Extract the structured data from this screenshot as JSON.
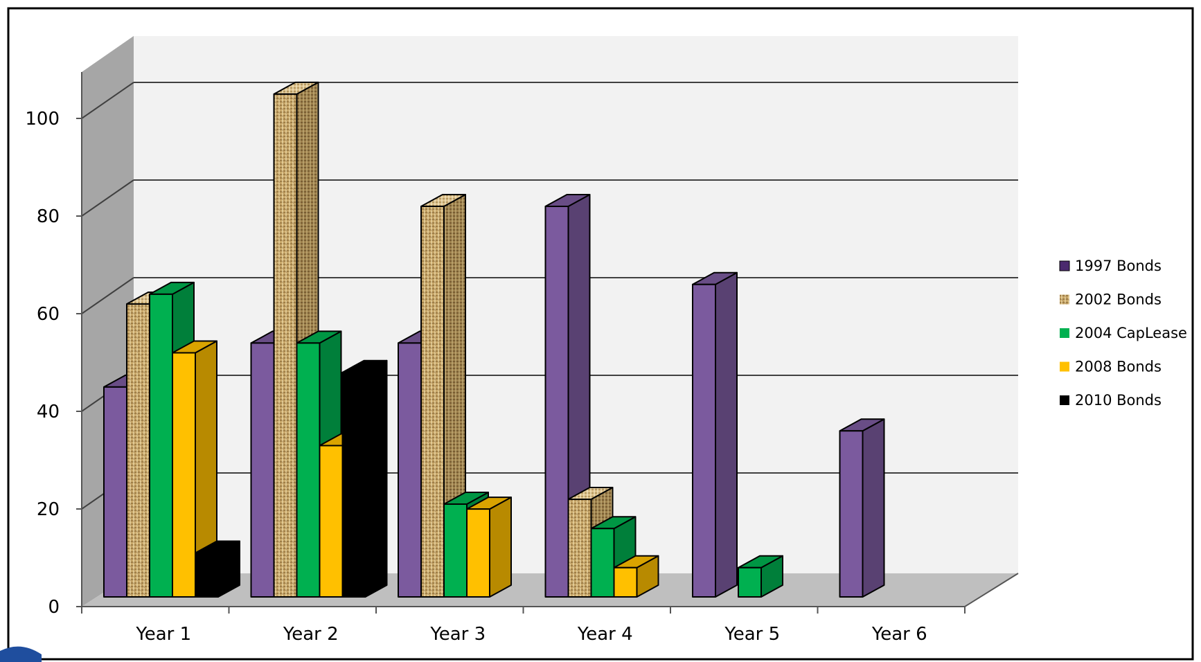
{
  "chart_data": {
    "type": "bar",
    "title": "",
    "xlabel": "",
    "ylabel": "",
    "categories": [
      "Year 1",
      "Year 2",
      "Year 3",
      "Year 4",
      "Year 5",
      "Year 6"
    ],
    "ylim": [
      0,
      100
    ],
    "yticks": [
      "0",
      "20",
      "40",
      "60",
      "80",
      "100"
    ],
    "grid": true,
    "three_d": true,
    "legend_position": "right",
    "series": [
      {
        "name": "1997 Bonds",
        "color": "#7b5a9e",
        "values": [
          43,
          52,
          52,
          80,
          64,
          34
        ]
      },
      {
        "name": "2002 Bonds",
        "color": "#c9a86a",
        "pattern": "burlap",
        "values": [
          60,
          103,
          80,
          20,
          0,
          0
        ]
      },
      {
        "name": "2004 CapLease",
        "color": "#00b050",
        "values": [
          62,
          52,
          19,
          14,
          6,
          0
        ]
      },
      {
        "name": "2008 Bonds",
        "color": "#ffc000",
        "values": [
          50,
          31,
          18,
          6,
          0,
          0
        ]
      },
      {
        "name": "2010 Bonds",
        "color": "#000000",
        "values": [
          9,
          46,
          0,
          0,
          0,
          0
        ]
      }
    ]
  }
}
